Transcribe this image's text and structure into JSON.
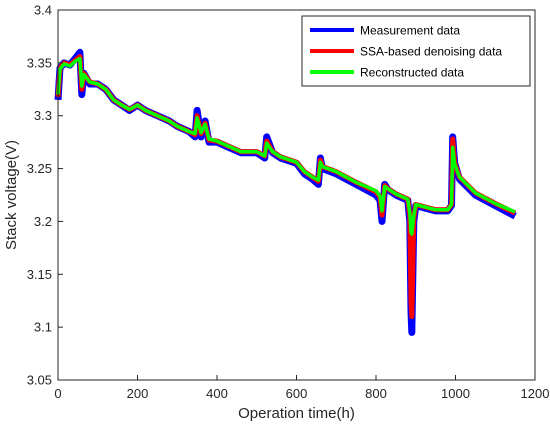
{
  "chart_data": {
    "type": "line",
    "title": "",
    "xlabel": "Operation time(h)",
    "ylabel": "Stack voltage(V)",
    "xlim": [
      0,
      1200
    ],
    "ylim": [
      3.05,
      3.4
    ],
    "xticks": [
      0,
      200,
      400,
      600,
      800,
      1000,
      1200
    ],
    "yticks": [
      3.05,
      3.1,
      3.15,
      3.2,
      3.25,
      3.3,
      3.35,
      3.4
    ],
    "xtick_labels": [
      "0",
      "200",
      "400",
      "600",
      "800",
      "1000",
      "1200"
    ],
    "ytick_labels": [
      "3.05",
      "3.1",
      "3.15",
      "3.2",
      "3.25",
      "3.3",
      "3.35",
      "3.4"
    ],
    "grid": false,
    "legend_position": "top-right",
    "series": [
      {
        "name": "Measurement data",
        "color": "#0000ff",
        "x": [
          0,
          5,
          15,
          30,
          45,
          55,
          60,
          65,
          80,
          100,
          120,
          140,
          160,
          180,
          200,
          220,
          250,
          280,
          300,
          330,
          345,
          350,
          360,
          370,
          380,
          400,
          430,
          460,
          500,
          520,
          525,
          540,
          560,
          600,
          620,
          640,
          655,
          660,
          665,
          700,
          750,
          800,
          810,
          815,
          822,
          830,
          850,
          880,
          885,
          888,
          890,
          895,
          900,
          950,
          980,
          990,
          993,
          998,
          1010,
          1050,
          1100,
          1150
        ],
        "values": [
          3.315,
          3.345,
          3.35,
          3.348,
          3.355,
          3.36,
          3.32,
          3.34,
          3.33,
          3.33,
          3.325,
          3.315,
          3.31,
          3.305,
          3.31,
          3.305,
          3.3,
          3.295,
          3.29,
          3.285,
          3.28,
          3.305,
          3.28,
          3.295,
          3.275,
          3.275,
          3.27,
          3.265,
          3.265,
          3.26,
          3.28,
          3.265,
          3.26,
          3.255,
          3.245,
          3.24,
          3.235,
          3.26,
          3.25,
          3.245,
          3.235,
          3.225,
          3.22,
          3.2,
          3.235,
          3.23,
          3.225,
          3.22,
          3.2,
          3.115,
          3.095,
          3.2,
          3.215,
          3.21,
          3.21,
          3.215,
          3.28,
          3.255,
          3.24,
          3.225,
          3.215,
          3.205
        ]
      },
      {
        "name": "SSA-based denoising data",
        "color": "#ff0000",
        "x": [
          0,
          5,
          15,
          30,
          45,
          55,
          60,
          65,
          80,
          100,
          120,
          140,
          160,
          180,
          200,
          220,
          250,
          280,
          300,
          330,
          345,
          350,
          360,
          370,
          380,
          400,
          430,
          460,
          500,
          520,
          525,
          540,
          560,
          600,
          620,
          640,
          655,
          660,
          665,
          700,
          750,
          800,
          810,
          815,
          822,
          830,
          850,
          880,
          885,
          888,
          890,
          895,
          900,
          950,
          980,
          990,
          993,
          998,
          1010,
          1050,
          1100,
          1150
        ],
        "values": [
          3.318,
          3.345,
          3.35,
          3.348,
          3.353,
          3.356,
          3.325,
          3.34,
          3.332,
          3.33,
          3.325,
          3.315,
          3.31,
          3.306,
          3.31,
          3.305,
          3.3,
          3.295,
          3.29,
          3.285,
          3.282,
          3.3,
          3.283,
          3.293,
          3.277,
          3.276,
          3.271,
          3.266,
          3.266,
          3.262,
          3.276,
          3.266,
          3.261,
          3.256,
          3.247,
          3.242,
          3.238,
          3.258,
          3.252,
          3.247,
          3.237,
          3.228,
          3.223,
          3.206,
          3.234,
          3.231,
          3.226,
          3.221,
          3.206,
          3.125,
          3.11,
          3.203,
          3.216,
          3.211,
          3.211,
          3.216,
          3.278,
          3.255,
          3.242,
          3.227,
          3.217,
          3.208
        ]
      },
      {
        "name": "Reconstructed data",
        "color": "#00ff00",
        "x": [
          0,
          5,
          15,
          30,
          45,
          55,
          60,
          65,
          80,
          100,
          120,
          140,
          160,
          180,
          200,
          220,
          250,
          280,
          300,
          330,
          345,
          350,
          360,
          370,
          380,
          400,
          430,
          460,
          500,
          520,
          525,
          540,
          560,
          600,
          620,
          640,
          655,
          660,
          665,
          700,
          750,
          800,
          810,
          815,
          822,
          830,
          850,
          880,
          885,
          888,
          890,
          895,
          900,
          950,
          980,
          990,
          993,
          998,
          1010,
          1050,
          1100,
          1150
        ],
        "values": [
          3.32,
          3.344,
          3.349,
          3.347,
          3.352,
          3.354,
          3.328,
          3.339,
          3.332,
          3.33,
          3.325,
          3.315,
          3.31,
          3.306,
          3.31,
          3.305,
          3.3,
          3.295,
          3.29,
          3.285,
          3.283,
          3.298,
          3.284,
          3.292,
          3.278,
          3.276,
          3.271,
          3.266,
          3.266,
          3.262,
          3.274,
          3.266,
          3.261,
          3.256,
          3.247,
          3.242,
          3.239,
          3.256,
          3.252,
          3.247,
          3.237,
          3.229,
          3.224,
          3.21,
          3.233,
          3.231,
          3.226,
          3.221,
          3.208,
          3.19,
          3.188,
          3.205,
          3.216,
          3.211,
          3.211,
          3.216,
          3.27,
          3.254,
          3.242,
          3.227,
          3.217,
          3.209
        ]
      }
    ]
  }
}
